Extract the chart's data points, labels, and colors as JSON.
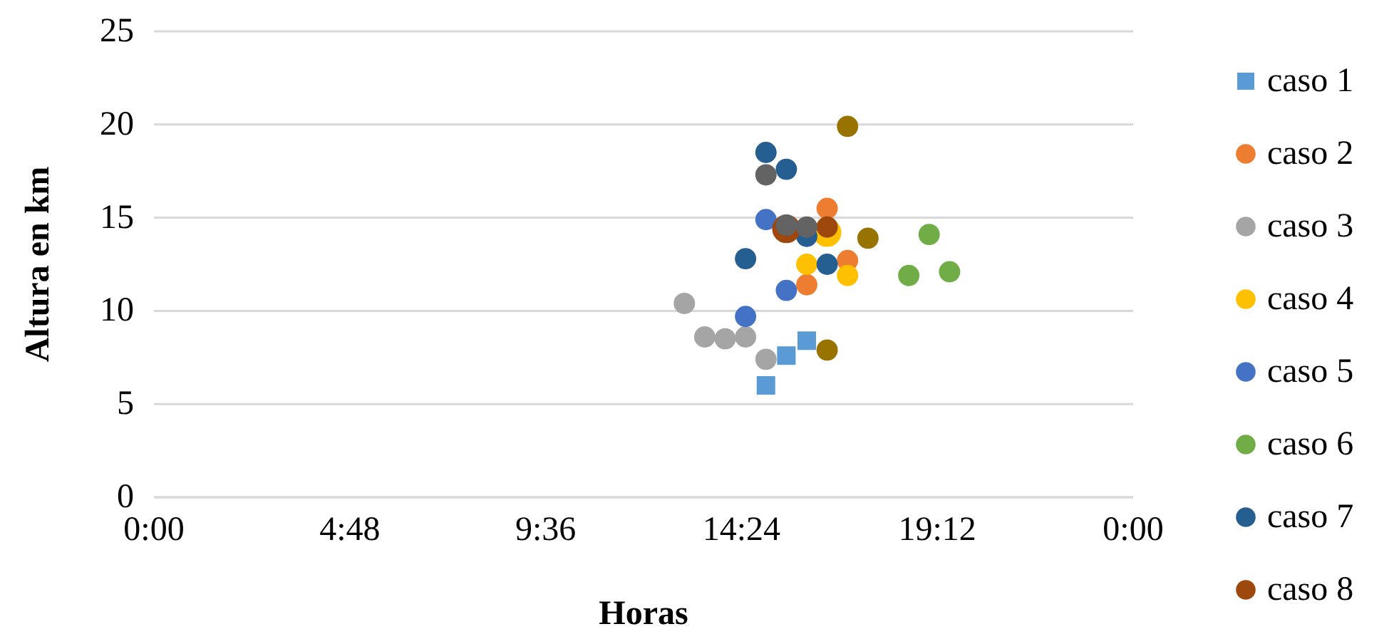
{
  "chart_data": {
    "type": "scatter",
    "xlabel": "Horas",
    "ylabel": "Altura en km",
    "xlim": [
      0,
      24
    ],
    "xticks": [
      {
        "value": 0,
        "label": "0:00"
      },
      {
        "value": 4.8,
        "label": "4:48"
      },
      {
        "value": 9.6,
        "label": "9:36"
      },
      {
        "value": 14.4,
        "label": "14:24"
      },
      {
        "value": 19.2,
        "label": "19:12"
      },
      {
        "value": 24,
        "label": "0:00"
      }
    ],
    "ylim": [
      0,
      25
    ],
    "yticks": [
      0,
      5,
      10,
      15,
      20,
      25
    ],
    "grid": "y",
    "legend": "right",
    "marker": "circle",
    "series": [
      {
        "name": "caso 1",
        "color": "#5b9bd5",
        "marker": "square",
        "x": [
          15.0,
          15.5,
          16.0
        ],
        "values": [
          6.0,
          7.6,
          8.4
        ]
      },
      {
        "name": "caso 2",
        "color": "#ed7d31",
        "x": [
          16.5,
          17.0,
          16.0
        ],
        "values": [
          15.5,
          12.7,
          11.4
        ]
      },
      {
        "name": "caso 3",
        "color": "#a5a5a5",
        "x": [
          13.0,
          13.5,
          14.0,
          14.5,
          15.0
        ],
        "values": [
          10.4,
          8.6,
          8.5,
          8.6,
          7.4
        ]
      },
      {
        "name": "caso 4",
        "color": "#ffc000",
        "x": [
          16.5,
          16.0,
          17.0
        ],
        "values": [
          14.2,
          12.5,
          11.9
        ]
      },
      {
        "name": "caso 5",
        "color": "#4472c4",
        "x": [
          15.0,
          15.5,
          14.5
        ],
        "values": [
          14.9,
          11.1,
          9.7
        ]
      },
      {
        "name": "caso 6",
        "color": "#70ad47",
        "x": [
          19.0,
          18.5,
          19.5
        ],
        "values": [
          14.1,
          11.9,
          12.1
        ]
      },
      {
        "name": "caso 7",
        "color": "#255e91",
        "x": [
          15.0,
          15.5,
          14.5,
          16.5,
          16.0
        ],
        "values": [
          18.5,
          17.6,
          12.8,
          12.5,
          14.0
        ]
      },
      {
        "name": "caso 8",
        "color": "#9e480e",
        "x": [
          15.5,
          16.5
        ],
        "values": [
          14.4,
          14.5
        ]
      },
      {
        "color": "#636363",
        "x": [
          15.0,
          15.5,
          16.0
        ],
        "values": [
          17.3,
          14.6,
          14.5
        ]
      },
      {
        "color": "#997300",
        "x": [
          17.0,
          17.5,
          16.5
        ],
        "values": [
          19.9,
          13.9,
          7.9
        ]
      }
    ]
  }
}
